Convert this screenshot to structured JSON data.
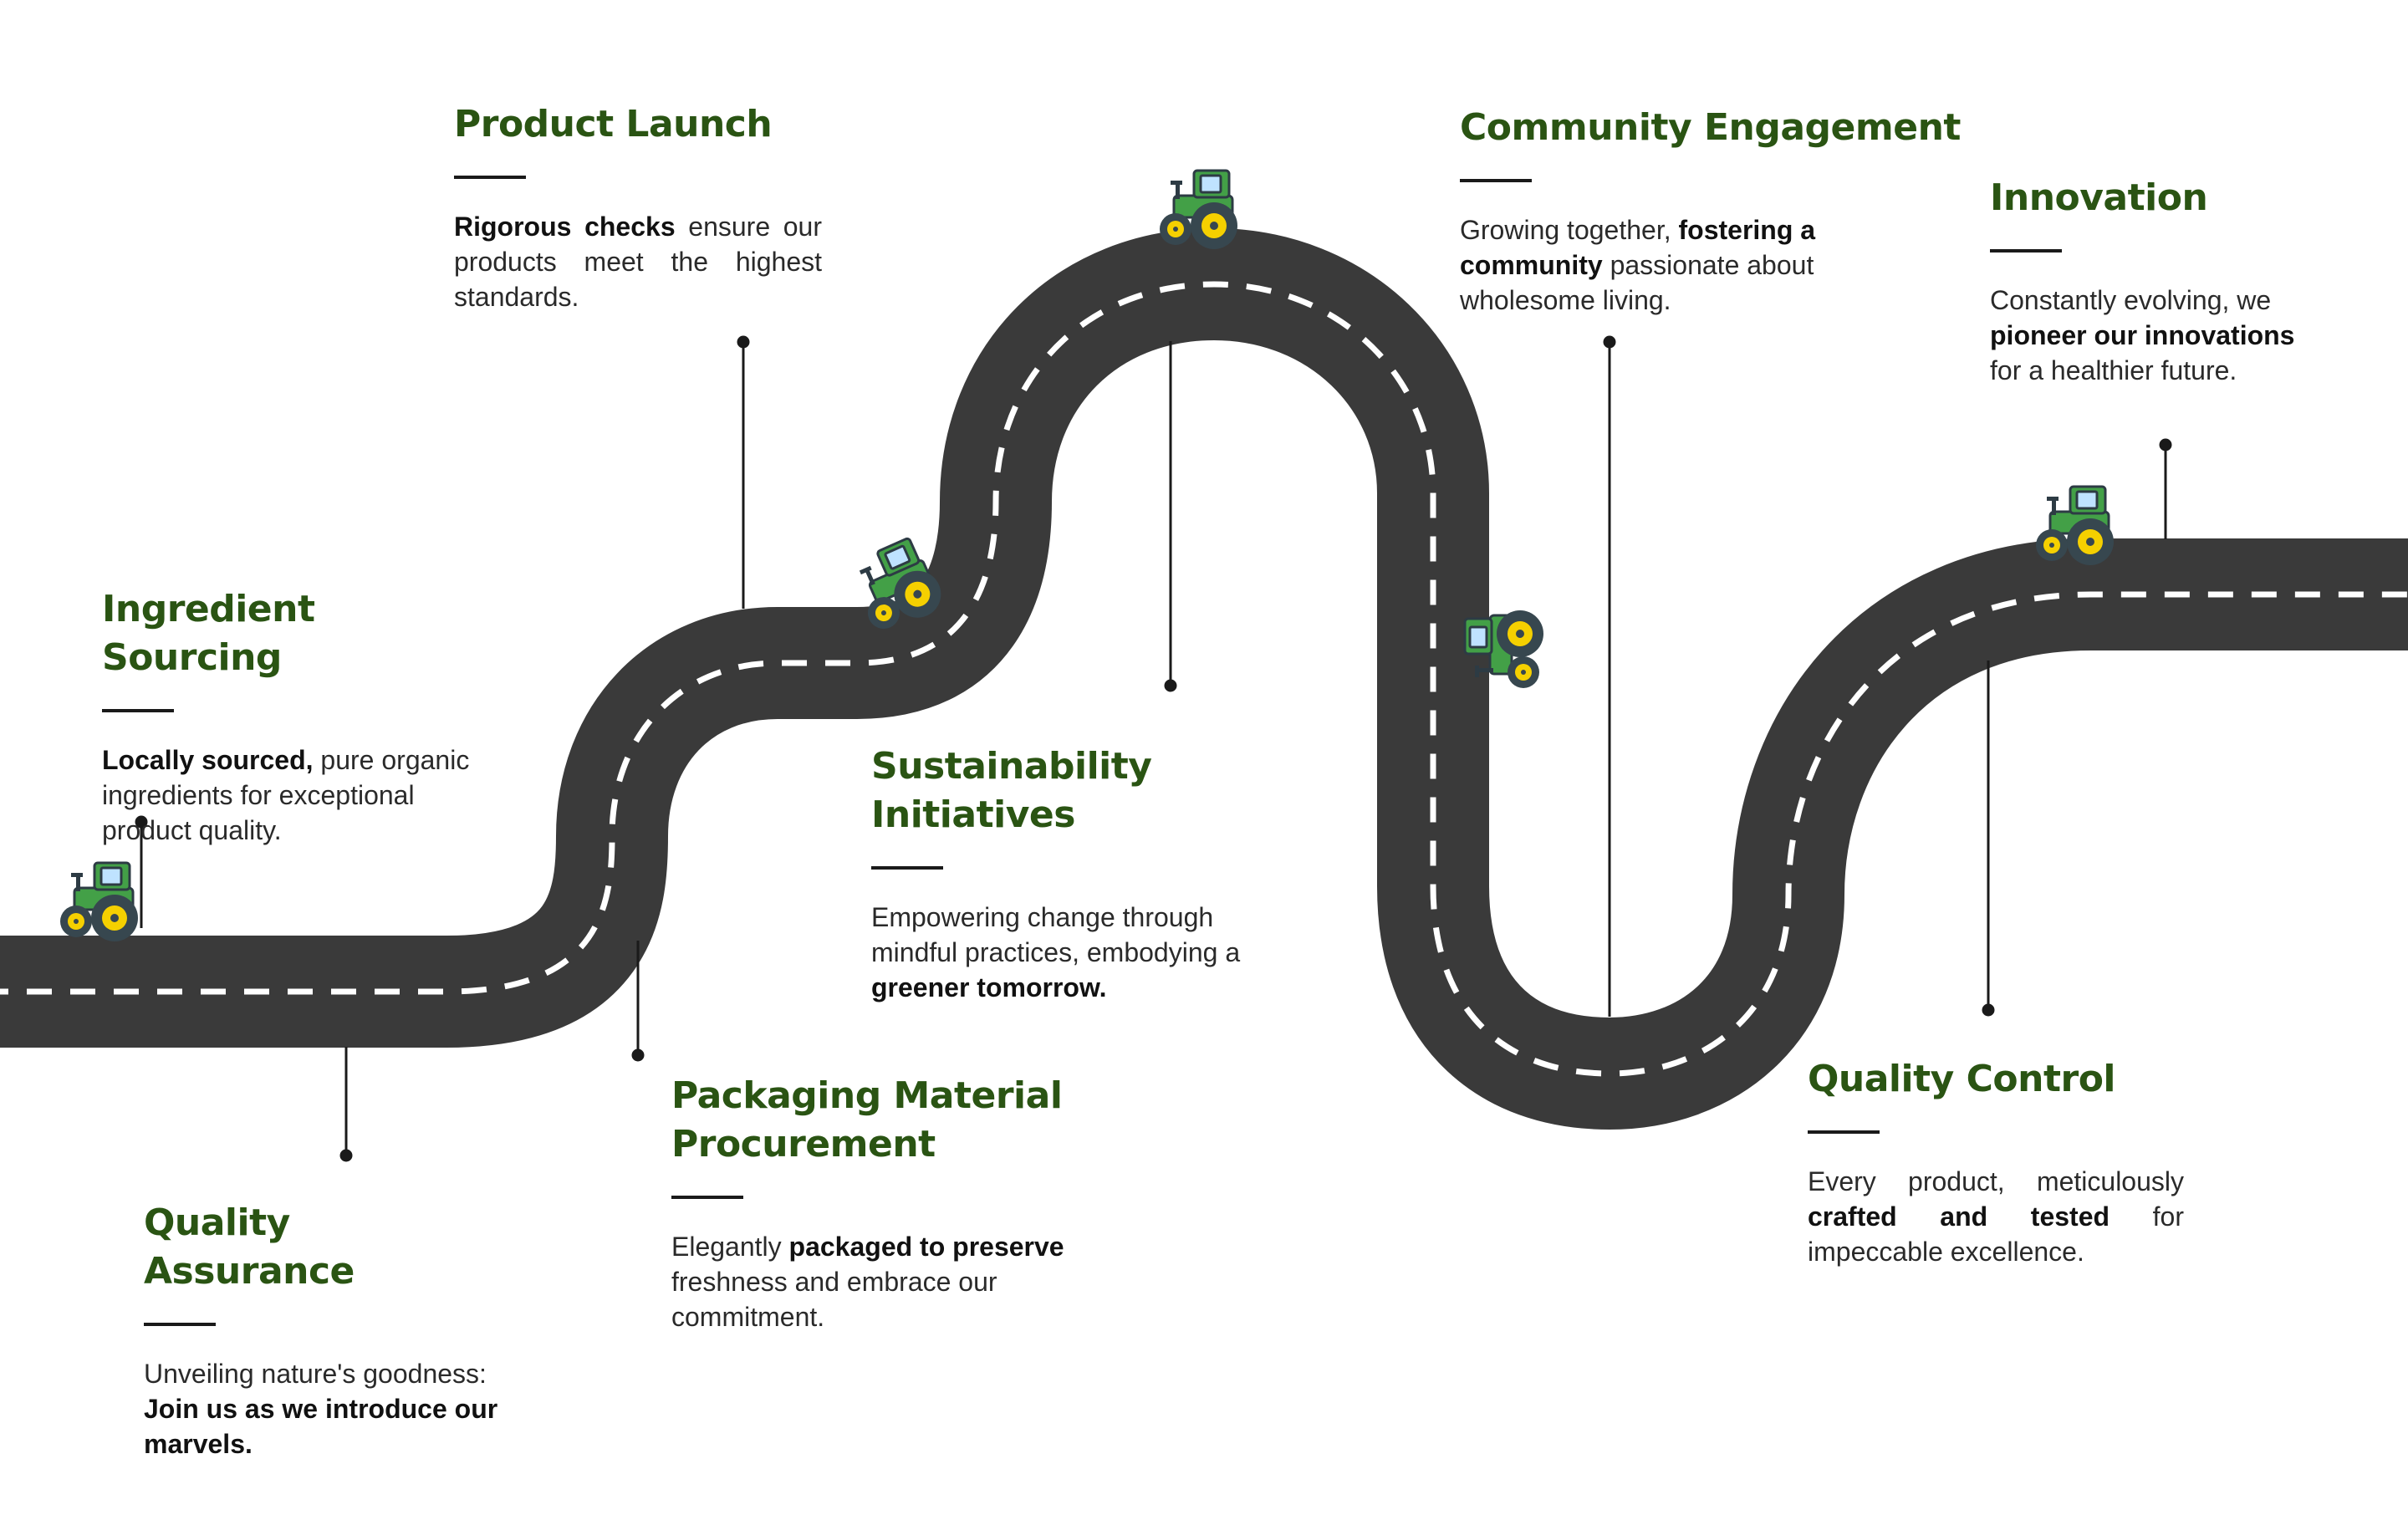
{
  "colors": {
    "road": "#3a3a3a",
    "lane": "#ffffff",
    "heading": "#2a5413",
    "tractor_body": "#43a047",
    "tractor_wheel": "#37474f",
    "tractor_hub": "#f5d000"
  },
  "icons": [
    "tractor-icon"
  ],
  "milestones": [
    {
      "id": "ingredient-sourcing",
      "title": "Ingredient Sourcing",
      "text": [
        {
          "b": "Locally sourced,"
        },
        {
          "t": " pure organic ingredients for exceptional product quality."
        }
      ]
    },
    {
      "id": "quality-assurance",
      "title": "Quality Assurance",
      "text": [
        {
          "t": "Unveiling nature's goodness: "
        },
        {
          "b": "Join us as we introduce our marvels."
        }
      ]
    },
    {
      "id": "product-launch",
      "title": "Product Launch",
      "text": [
        {
          "b": "Rigorous checks"
        },
        {
          "t": " ensure our products meet the highest standards."
        }
      ]
    },
    {
      "id": "packaging-material-procurement",
      "title": "Packaging Material Procurement",
      "text": [
        {
          "t": "Elegantly "
        },
        {
          "b": "packaged to preserve"
        },
        {
          "t": " freshness and embrace our  commitment."
        }
      ]
    },
    {
      "id": "sustainability-initiatives",
      "title": "Sustainability Initiatives",
      "text": [
        {
          "t": "Empowering change through mindful practices, embodying a "
        },
        {
          "b": "greener tomorrow."
        }
      ]
    },
    {
      "id": "community-engagement",
      "title": "Community Engagement",
      "text": [
        {
          "t": "Growing together, "
        },
        {
          "b": "fostering a community"
        },
        {
          "t": " passionate about wholesome living."
        }
      ]
    },
    {
      "id": "quality-control",
      "title": "Quality Control",
      "text": [
        {
          "t": "Every product, meticulously "
        },
        {
          "b": "crafted and tested"
        },
        {
          "t": " for impeccable excellence."
        }
      ]
    },
    {
      "id": "innovation",
      "title": "Innovation",
      "text": [
        {
          "t": "Constantly evolving, we "
        },
        {
          "b": "pioneer our innovations"
        },
        {
          "t": " for a healthier future."
        }
      ]
    }
  ]
}
